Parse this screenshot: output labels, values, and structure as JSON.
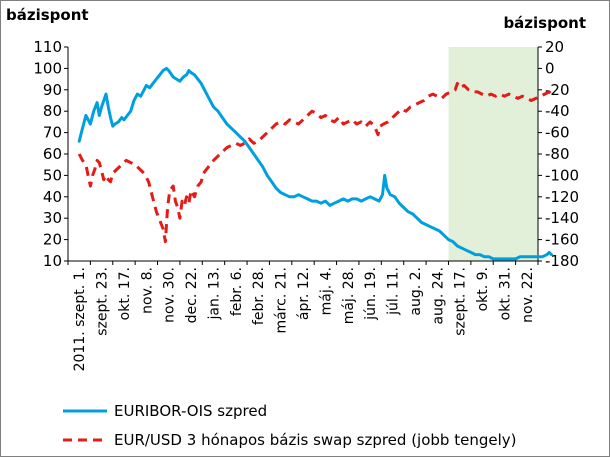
{
  "chart_data": {
    "type": "line",
    "y_left_label": "bázispont",
    "y_right_label": "bázispont",
    "y_left_ticks": [
      "110",
      "100",
      "90",
      "80",
      "70",
      "60",
      "50",
      "40",
      "30",
      "20",
      "10"
    ],
    "y_right_ticks": [
      "20",
      "0",
      "-20",
      "-40",
      "-60",
      "-80",
      "-100",
      "-120",
      "-140",
      "-160",
      "-180"
    ],
    "ylim_left": [
      10,
      110
    ],
    "ylim_right": [
      -180,
      20
    ],
    "x_tick_labels": [
      "2011. szept. 1.",
      "szept. 23.",
      "okt. 17.",
      "nov. 8.",
      "nov. 30.",
      "dec. 22.",
      "jan. 13.",
      "febr. 6.",
      "febr. 28.",
      "márc. 21.",
      "ápr. 12.",
      "máj. 4.",
      "máj. 28.",
      "jún. 19.",
      "júl. 11.",
      "aug. 2.",
      "aug. 24.",
      "szept. 17.",
      "okt. 9.",
      "okt. 31.",
      "nov. 22."
    ],
    "highlight": {
      "from_index": 17,
      "to_index": 21,
      "color": "#e2efd9"
    },
    "grid": false,
    "legend_position": "bottom",
    "series": [
      {
        "name": "EURIBOR-OIS szpred",
        "axis": "left",
        "color": "#00a0e0",
        "style": "solid",
        "values": [
          [
            0,
            66
          ],
          [
            0.15,
            72
          ],
          [
            0.3,
            78
          ],
          [
            0.5,
            74
          ],
          [
            0.65,
            80
          ],
          [
            0.8,
            84
          ],
          [
            0.9,
            78
          ],
          [
            1.0,
            82
          ],
          [
            1.1,
            85
          ],
          [
            1.2,
            88
          ],
          [
            1.3,
            82
          ],
          [
            1.4,
            77
          ],
          [
            1.5,
            73
          ],
          [
            1.6,
            74
          ],
          [
            1.75,
            75
          ],
          [
            1.9,
            77
          ],
          [
            2.0,
            76
          ],
          [
            2.15,
            78
          ],
          [
            2.3,
            80
          ],
          [
            2.45,
            85
          ],
          [
            2.6,
            88
          ],
          [
            2.75,
            87
          ],
          [
            2.9,
            90
          ],
          [
            3.0,
            92
          ],
          [
            3.15,
            91
          ],
          [
            3.3,
            93
          ],
          [
            3.45,
            95
          ],
          [
            3.6,
            97
          ],
          [
            3.75,
            99
          ],
          [
            3.9,
            100
          ],
          [
            4.0,
            99
          ],
          [
            4.2,
            96
          ],
          [
            4.35,
            95
          ],
          [
            4.5,
            94
          ],
          [
            4.65,
            96
          ],
          [
            4.8,
            97
          ],
          [
            4.9,
            99
          ],
          [
            5.0,
            98
          ],
          [
            5.15,
            97
          ],
          [
            5.3,
            95
          ],
          [
            5.45,
            93
          ],
          [
            5.6,
            90
          ],
          [
            5.8,
            86
          ],
          [
            6.0,
            82
          ],
          [
            6.2,
            80
          ],
          [
            6.4,
            77
          ],
          [
            6.6,
            74
          ],
          [
            6.8,
            72
          ],
          [
            7.0,
            70
          ],
          [
            7.2,
            68
          ],
          [
            7.4,
            66
          ],
          [
            7.6,
            63
          ],
          [
            7.8,
            60
          ],
          [
            8.0,
            57
          ],
          [
            8.2,
            54
          ],
          [
            8.4,
            50
          ],
          [
            8.6,
            47
          ],
          [
            8.8,
            44
          ],
          [
            9.0,
            42
          ],
          [
            9.2,
            41
          ],
          [
            9.4,
            40
          ],
          [
            9.6,
            40
          ],
          [
            9.8,
            41
          ],
          [
            10.0,
            40
          ],
          [
            10.2,
            39
          ],
          [
            10.4,
            38
          ],
          [
            10.6,
            38
          ],
          [
            10.8,
            37
          ],
          [
            11.0,
            38
          ],
          [
            11.2,
            36
          ],
          [
            11.4,
            37
          ],
          [
            11.6,
            38
          ],
          [
            11.8,
            39
          ],
          [
            12.0,
            38
          ],
          [
            12.2,
            39
          ],
          [
            12.4,
            39
          ],
          [
            12.6,
            38
          ],
          [
            12.8,
            39
          ],
          [
            13.0,
            40
          ],
          [
            13.2,
            39
          ],
          [
            13.4,
            38
          ],
          [
            13.55,
            41
          ],
          [
            13.65,
            50
          ],
          [
            13.75,
            44
          ],
          [
            13.9,
            41
          ],
          [
            14.1,
            40
          ],
          [
            14.3,
            37
          ],
          [
            14.5,
            35
          ],
          [
            14.7,
            33
          ],
          [
            14.9,
            32
          ],
          [
            15.1,
            30
          ],
          [
            15.3,
            28
          ],
          [
            15.5,
            27
          ],
          [
            15.7,
            26
          ],
          [
            15.9,
            25
          ],
          [
            16.1,
            24
          ],
          [
            16.3,
            22
          ],
          [
            16.5,
            20
          ],
          [
            16.7,
            19
          ],
          [
            16.9,
            17
          ],
          [
            17.1,
            16
          ],
          [
            17.3,
            15
          ],
          [
            17.5,
            14
          ],
          [
            17.7,
            13
          ],
          [
            17.9,
            13
          ],
          [
            18.1,
            12
          ],
          [
            18.3,
            12
          ],
          [
            18.5,
            11
          ],
          [
            18.7,
            11
          ],
          [
            18.9,
            11
          ],
          [
            19.1,
            11
          ],
          [
            19.3,
            11
          ],
          [
            19.5,
            11
          ],
          [
            19.7,
            12
          ],
          [
            19.9,
            12
          ],
          [
            20.1,
            12
          ],
          [
            20.3,
            12
          ],
          [
            20.5,
            12
          ],
          [
            20.7,
            12
          ],
          [
            20.9,
            13
          ],
          [
            21.0,
            14
          ],
          [
            21.1,
            13
          ]
        ]
      },
      {
        "name": "EUR/USD 3 hónapos bázis swap szpred (jobb tengely)",
        "axis": "right",
        "color": "#e41b17",
        "style": "dashed",
        "values": [
          [
            0,
            -80
          ],
          [
            0.15,
            -86
          ],
          [
            0.3,
            -90
          ],
          [
            0.4,
            -100
          ],
          [
            0.5,
            -110
          ],
          [
            0.6,
            -100
          ],
          [
            0.7,
            -94
          ],
          [
            0.8,
            -86
          ],
          [
            0.9,
            -88
          ],
          [
            1.0,
            -96
          ],
          [
            1.1,
            -104
          ],
          [
            1.2,
            -100
          ],
          [
            1.3,
            -104
          ],
          [
            1.4,
            -106
          ],
          [
            1.5,
            -98
          ],
          [
            1.7,
            -94
          ],
          [
            1.9,
            -90
          ],
          [
            2.1,
            -86
          ],
          [
            2.3,
            -88
          ],
          [
            2.5,
            -90
          ],
          [
            2.7,
            -94
          ],
          [
            2.9,
            -98
          ],
          [
            3.1,
            -106
          ],
          [
            3.2,
            -114
          ],
          [
            3.3,
            -122
          ],
          [
            3.45,
            -134
          ],
          [
            3.6,
            -142
          ],
          [
            3.75,
            -150
          ],
          [
            3.85,
            -162
          ],
          [
            3.95,
            -130
          ],
          [
            4.05,
            -114
          ],
          [
            4.2,
            -110
          ],
          [
            4.3,
            -124
          ],
          [
            4.4,
            -130
          ],
          [
            4.5,
            -140
          ],
          [
            4.6,
            -124
          ],
          [
            4.7,
            -128
          ],
          [
            4.8,
            -120
          ],
          [
            4.9,
            -126
          ],
          [
            5.0,
            -114
          ],
          [
            5.15,
            -120
          ],
          [
            5.3,
            -110
          ],
          [
            5.45,
            -106
          ],
          [
            5.55,
            -98
          ],
          [
            5.7,
            -94
          ],
          [
            5.85,
            -90
          ],
          [
            6.0,
            -86
          ],
          [
            6.2,
            -82
          ],
          [
            6.4,
            -78
          ],
          [
            6.6,
            -74
          ],
          [
            6.8,
            -72
          ],
          [
            7.0,
            -70
          ],
          [
            7.2,
            -72
          ],
          [
            7.4,
            -70
          ],
          [
            7.6,
            -66
          ],
          [
            7.8,
            -70
          ],
          [
            8.0,
            -68
          ],
          [
            8.2,
            -64
          ],
          [
            8.4,
            -60
          ],
          [
            8.6,
            -56
          ],
          [
            8.8,
            -52
          ],
          [
            9.0,
            -50
          ],
          [
            9.2,
            -52
          ],
          [
            9.4,
            -48
          ],
          [
            9.6,
            -50
          ],
          [
            9.8,
            -52
          ],
          [
            10.0,
            -48
          ],
          [
            10.2,
            -44
          ],
          [
            10.4,
            -40
          ],
          [
            10.6,
            -42
          ],
          [
            10.8,
            -46
          ],
          [
            11.0,
            -44
          ],
          [
            11.2,
            -48
          ],
          [
            11.4,
            -50
          ],
          [
            11.6,
            -46
          ],
          [
            11.8,
            -52
          ],
          [
            12.0,
            -50
          ],
          [
            12.2,
            -48
          ],
          [
            12.4,
            -52
          ],
          [
            12.6,
            -50
          ],
          [
            12.8,
            -54
          ],
          [
            13.0,
            -50
          ],
          [
            13.2,
            -54
          ],
          [
            13.35,
            -62
          ],
          [
            13.45,
            -54
          ],
          [
            13.6,
            -52
          ],
          [
            13.8,
            -50
          ],
          [
            14.0,
            -46
          ],
          [
            14.2,
            -42
          ],
          [
            14.4,
            -38
          ],
          [
            14.6,
            -40
          ],
          [
            14.8,
            -36
          ],
          [
            15.0,
            -34
          ],
          [
            15.2,
            -32
          ],
          [
            15.4,
            -30
          ],
          [
            15.6,
            -26
          ],
          [
            15.8,
            -24
          ],
          [
            16.0,
            -26
          ],
          [
            16.2,
            -28
          ],
          [
            16.4,
            -24
          ],
          [
            16.6,
            -22
          ],
          [
            16.8,
            -20
          ],
          [
            16.9,
            -14
          ],
          [
            17.0,
            -18
          ],
          [
            17.2,
            -16
          ],
          [
            17.4,
            -20
          ],
          [
            17.6,
            -22
          ],
          [
            17.8,
            -22
          ],
          [
            18.0,
            -24
          ],
          [
            18.2,
            -26
          ],
          [
            18.4,
            -24
          ],
          [
            18.6,
            -26
          ],
          [
            18.8,
            -24
          ],
          [
            19.0,
            -26
          ],
          [
            19.2,
            -24
          ],
          [
            19.4,
            -26
          ],
          [
            19.6,
            -28
          ],
          [
            19.8,
            -26
          ],
          [
            20.0,
            -28
          ],
          [
            20.2,
            -30
          ],
          [
            20.4,
            -28
          ],
          [
            20.6,
            -26
          ],
          [
            20.8,
            -24
          ],
          [
            21.0,
            -22
          ],
          [
            21.1,
            -24
          ]
        ]
      }
    ]
  }
}
